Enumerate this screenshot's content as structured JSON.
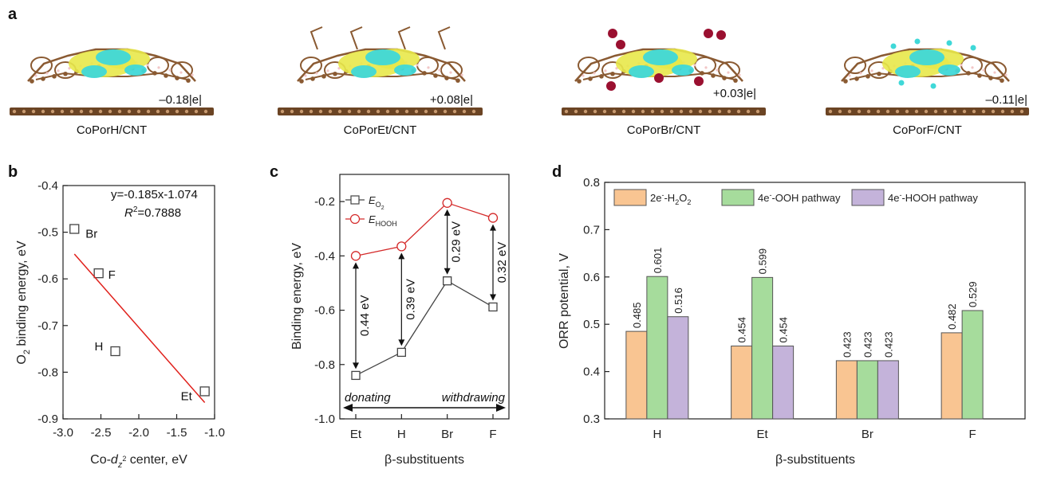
{
  "panel_labels": {
    "a": "a",
    "b": "b",
    "c": "c",
    "d": "d"
  },
  "panel_a": {
    "structures": [
      {
        "name": "CoPorH/CNT",
        "charge": "–0.18|e|"
      },
      {
        "name": "CoPorEt/CNT",
        "charge": "+0.08|e|"
      },
      {
        "name": "CoPorBr/CNT",
        "charge": "+0.03|e|"
      },
      {
        "name": "CoPorF/CNT",
        "charge": "–0.11|e|"
      }
    ],
    "colors": {
      "substrate": "#6b4424",
      "atom": "#8a5a32",
      "yellow": "#e8e84a",
      "cyan": "#3fd8d8",
      "br": "#9a1030",
      "h": "#f2c6c6"
    }
  },
  "chart_data": [
    {
      "type": "scatter",
      "panel": "b",
      "xlabel": "Co-d_z2 center, eV",
      "ylabel": "O2 binding energy, eV",
      "xlim": [
        -3.0,
        -1.0
      ],
      "ylim": [
        -0.9,
        -0.4
      ],
      "xticks": [
        -3.0,
        -2.5,
        -2.0,
        -1.5,
        -1.0
      ],
      "xtick_labels": [
        "-3.0",
        "-2.5",
        "-2.0",
        "-1.5",
        "-1.0"
      ],
      "yticks": [
        -0.9,
        -0.8,
        -0.7,
        -0.6,
        -0.5,
        -0.4
      ],
      "ytick_labels": [
        "-0.9",
        "-0.8",
        "-0.7",
        "-0.6",
        "-0.5",
        "-0.4"
      ],
      "points": [
        {
          "label": "Br",
          "x": -2.85,
          "y": -0.493
        },
        {
          "label": "F",
          "x": -2.53,
          "y": -0.588
        },
        {
          "label": "H",
          "x": -2.31,
          "y": -0.755
        },
        {
          "label": "Et",
          "x": -1.13,
          "y": -0.841
        }
      ],
      "fit": {
        "slope": -0.185,
        "intercept": -1.074,
        "x_range": [
          -2.85,
          -1.13
        ],
        "color": "#e0201b"
      },
      "annotation": {
        "equation": "y=-0.185x-1.074",
        "r2": "=0.7888"
      }
    },
    {
      "type": "line",
      "panel": "c",
      "xlabel": "β-substituents",
      "ylabel": "Binding energy, eV",
      "categories": [
        "Et",
        "H",
        "Br",
        "F"
      ],
      "ylim": [
        -1.0,
        -0.1
      ],
      "yticks": [
        -1.0,
        -0.8,
        -0.6,
        -0.4,
        -0.2
      ],
      "ytick_labels": [
        "-1.0",
        "-0.8",
        "-0.6",
        "-0.4",
        "-0.2"
      ],
      "series": [
        {
          "name": "E_O2",
          "values": [
            -0.84,
            -0.755,
            -0.492,
            -0.588
          ],
          "color": "#444444",
          "marker": "square"
        },
        {
          "name": "E_HOOH",
          "values": [
            -0.4,
            -0.365,
            -0.205,
            -0.26
          ],
          "color": "#d42a2a",
          "marker": "circle"
        }
      ],
      "gaps": [
        "0.44 eV",
        "0.39 eV",
        "0.29 eV",
        "0.32 eV"
      ],
      "arrow_labels": {
        "left": "donating",
        "right": "withdrawing"
      }
    },
    {
      "type": "bar",
      "panel": "d",
      "xlabel": "β-substituents",
      "ylabel": "ORR potential, V",
      "categories": [
        "H",
        "Et",
        "Br",
        "F"
      ],
      "ylim": [
        0.3,
        0.8
      ],
      "yticks": [
        0.3,
        0.4,
        0.5,
        0.6,
        0.7,
        0.8
      ],
      "ytick_labels": [
        "0.3",
        "0.4",
        "0.5",
        "0.6",
        "0.7",
        "0.8"
      ],
      "series": [
        {
          "name": "2e-H2O2",
          "values": [
            0.485,
            0.454,
            0.423,
            0.482
          ],
          "labels": [
            "0.485",
            "0.454",
            "0.423",
            "0.482"
          ],
          "color": "#f9c592"
        },
        {
          "name": "4e-OOH pathway",
          "values": [
            0.601,
            0.599,
            0.423,
            0.529
          ],
          "labels": [
            "0.601",
            "0.599",
            "0.423",
            "0.529"
          ],
          "color": "#a6dc9c"
        },
        {
          "name": "4e-HOOH pathway",
          "values": [
            0.516,
            0.454,
            0.423,
            null
          ],
          "labels": [
            "0.516",
            "0.454",
            "0.423",
            ""
          ],
          "color": "#c4b3da"
        }
      ]
    }
  ]
}
